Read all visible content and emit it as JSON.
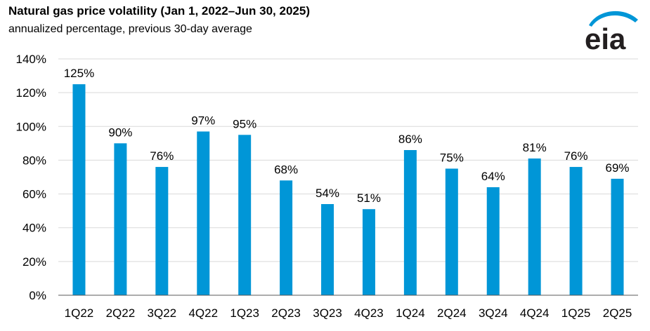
{
  "title": "Natural gas price volatility (Jan 1, 2022–Jun 30, 2025)",
  "subtitle": "annualized percentage, previous 30-day average",
  "logo": {
    "text": "eia",
    "icon": "eia-logo"
  },
  "colors": {
    "bar": "#0096d7",
    "grid": "#d9d9d9",
    "axis": "#595959",
    "logo_text": "#231f20",
    "logo_arc": "#0096d7"
  },
  "chart_data": {
    "type": "bar",
    "categories": [
      "1Q22",
      "2Q22",
      "3Q22",
      "4Q22",
      "1Q23",
      "2Q23",
      "3Q23",
      "4Q23",
      "1Q24",
      "2Q24",
      "3Q24",
      "4Q24",
      "1Q25",
      "2Q25"
    ],
    "values": [
      125,
      90,
      76,
      97,
      95,
      68,
      54,
      51,
      86,
      75,
      64,
      81,
      76,
      69
    ],
    "value_labels": [
      "125%",
      "90%",
      "76%",
      "97%",
      "95%",
      "68%",
      "54%",
      "51%",
      "86%",
      "75%",
      "64%",
      "81%",
      "76%",
      "69%"
    ],
    "y_ticks": [
      0,
      20,
      40,
      60,
      80,
      100,
      120,
      140
    ],
    "y_tick_labels": [
      "0%",
      "20%",
      "40%",
      "60%",
      "80%",
      "100%",
      "120%",
      "140%"
    ],
    "ylim": [
      0,
      140
    ],
    "grid": true,
    "xlabel": "",
    "ylabel": ""
  }
}
